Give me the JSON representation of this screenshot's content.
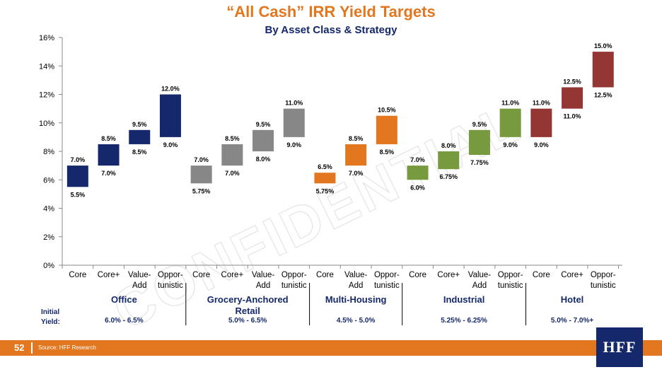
{
  "title": "“All Cash” IRR Yield Targets",
  "subtitle": "By Asset Class & Strategy",
  "watermark": "CONFIDENTIAL",
  "initial_yield_label": [
    "Initial",
    "Yield:"
  ],
  "footer": {
    "page_number": "52",
    "source": "Source: HFF Research",
    "logo": "HFF"
  },
  "colors": {
    "office": "#14286b",
    "retail": "#878787",
    "multi_housing": "#e2771f",
    "industrial": "#789a3e",
    "hotel": "#943634",
    "footer": "#e2771f"
  },
  "chart_data": {
    "type": "bar",
    "subtype": "floating-range",
    "ylim": [
      0,
      16
    ],
    "yticks": [
      "0%",
      "2%",
      "4%",
      "6%",
      "8%",
      "10%",
      "12%",
      "14%",
      "16%"
    ],
    "grid": false,
    "groups": [
      {
        "name": "Office",
        "name_lines": [
          "Office"
        ],
        "initial_yield": "6.0% - 6.5%",
        "color": "#14286b",
        "bars": [
          {
            "category": [
              "Core"
            ],
            "low": 5.5,
            "high": 7.0,
            "low_label": "5.5%",
            "high_label": "7.0%"
          },
          {
            "category": [
              "Core+"
            ],
            "low": 7.0,
            "high": 8.5,
            "low_label": "7.0%",
            "high_label": "8.5%"
          },
          {
            "category": [
              "Value-",
              "Add"
            ],
            "low": 8.5,
            "high": 9.5,
            "low_label": "8.5%",
            "high_label": "9.5%"
          },
          {
            "category": [
              "Oppor-",
              "tunistic"
            ],
            "low": 9.0,
            "high": 12.0,
            "low_label": "9.0%",
            "high_label": "12.0%"
          }
        ]
      },
      {
        "name": "Grocery-Anchored Retail",
        "name_lines": [
          "Grocery-Anchored",
          "Retail"
        ],
        "initial_yield": "5.0% - 6.5%",
        "color": "#878787",
        "bars": [
          {
            "category": [
              "Core"
            ],
            "low": 5.75,
            "high": 7.0,
            "low_label": "5.75%",
            "high_label": "7.0%"
          },
          {
            "category": [
              "Core+"
            ],
            "low": 7.0,
            "high": 8.5,
            "low_label": "7.0%",
            "high_label": "8.5%"
          },
          {
            "category": [
              "Value-",
              "Add"
            ],
            "low": 8.0,
            "high": 9.5,
            "low_label": "8.0%",
            "high_label": "9.5%"
          },
          {
            "category": [
              "Oppor-",
              "tunistic"
            ],
            "low": 9.0,
            "high": 11.0,
            "low_label": "9.0%",
            "high_label": "11.0%"
          }
        ]
      },
      {
        "name": "Multi-Housing",
        "name_lines": [
          "Multi-Housing"
        ],
        "initial_yield": "4.5% - 5.0%",
        "color": "#e2771f",
        "bars": [
          {
            "category": [
              "Core"
            ],
            "low": 5.75,
            "high": 6.5,
            "low_label": "5.75%",
            "high_label": "6.5%"
          },
          {
            "category": [
              "Value-",
              "Add"
            ],
            "low": 7.0,
            "high": 8.5,
            "low_label": "7.0%",
            "high_label": "8.5%"
          },
          {
            "category": [
              "Oppor-",
              "tunistic"
            ],
            "low": 8.5,
            "high": 10.5,
            "low_label": "8.5%",
            "high_label": "10.5%"
          }
        ]
      },
      {
        "name": "Industrial",
        "name_lines": [
          "Industrial"
        ],
        "initial_yield": "5.25% - 6.25%",
        "color": "#789a3e",
        "bars": [
          {
            "category": [
              "Core"
            ],
            "low": 6.0,
            "high": 7.0,
            "low_label": "6.0%",
            "high_label": "7.0%"
          },
          {
            "category": [
              "Core+"
            ],
            "low": 6.75,
            "high": 8.0,
            "low_label": "6.75%",
            "high_label": "8.0%"
          },
          {
            "category": [
              "Value-",
              "Add"
            ],
            "low": 7.75,
            "high": 9.5,
            "low_label": "7.75%",
            "high_label": "9.5%"
          },
          {
            "category": [
              "Oppor-",
              "tunistic"
            ],
            "low": 9.0,
            "high": 11.0,
            "low_label": "9.0%",
            "high_label": "11.0%"
          }
        ]
      },
      {
        "name": "Hotel",
        "name_lines": [
          "Hotel"
        ],
        "initial_yield": "5.0% - 7.0%+",
        "color": "#943634",
        "bars": [
          {
            "category": [
              "Core"
            ],
            "low": 9.0,
            "high": 11.0,
            "low_label": "9.0%",
            "high_label": "11.0%"
          },
          {
            "category": [
              "Core+"
            ],
            "low": 11.0,
            "high": 12.5,
            "low_label": "11.0%",
            "high_label": "12.5%"
          },
          {
            "category": [
              "Oppor-",
              "tunistic"
            ],
            "low": 12.5,
            "high": 15.0,
            "low_label": "12.5%",
            "high_label": "15.0%"
          }
        ]
      }
    ]
  }
}
